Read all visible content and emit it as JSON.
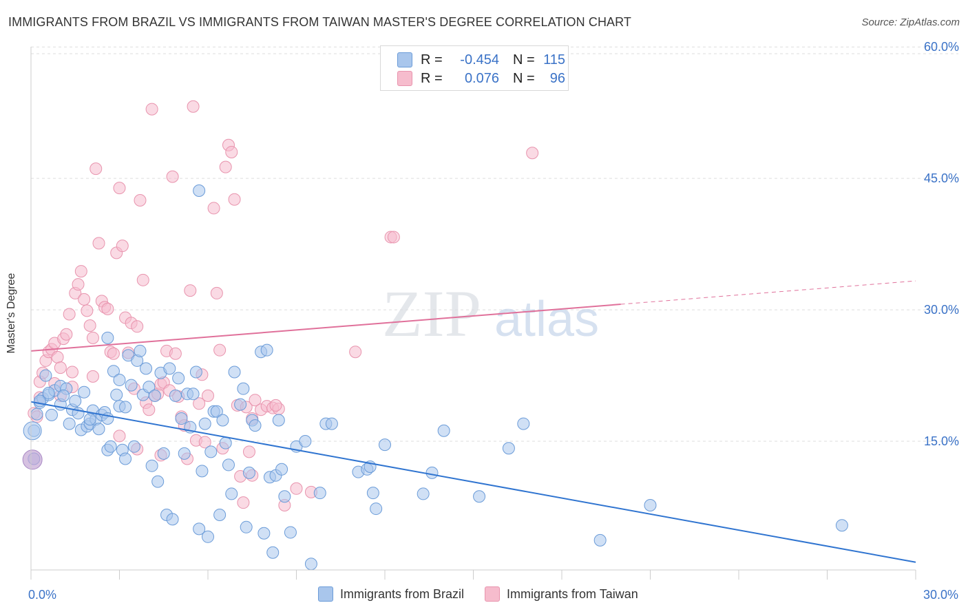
{
  "header": {
    "title": "IMMIGRANTS FROM BRAZIL VS IMMIGRANTS FROM TAIWAN MASTER'S DEGREE CORRELATION CHART",
    "source": "Source: ZipAtlas.com"
  },
  "watermark": {
    "zip": "ZIP",
    "atlas": "atlas"
  },
  "legend": {
    "brazil": {
      "r_label": "R =",
      "r_value": "-0.454",
      "n_label": "N =",
      "n_value": "115"
    },
    "taiwan": {
      "r_label": "R =",
      "r_value": "0.076",
      "n_label": "N =",
      "n_value": "96"
    }
  },
  "colors": {
    "brazil_fill": "#a9c6ec",
    "brazil_stroke": "#6a9bd8",
    "brazil_line": "#2f74d0",
    "taiwan_fill": "#f6bccd",
    "taiwan_stroke": "#e893ad",
    "taiwan_line": "#e0709a",
    "axis_text": "#3a72c7",
    "grid": "#dddddd"
  },
  "chart_data": {
    "type": "scatter",
    "title": "IMMIGRANTS FROM BRAZIL VS IMMIGRANTS FROM TAIWAN MASTER'S DEGREE CORRELATION CHART",
    "xlabel": "",
    "ylabel": "Master's Degree",
    "xlim": [
      0,
      30
    ],
    "ylim": [
      0,
      62
    ],
    "x_ticks": [
      0,
      3,
      6,
      9,
      12,
      15,
      18,
      21,
      24,
      27,
      30
    ],
    "x_tick_labels": [
      {
        "value": 0,
        "label": "0.0%"
      },
      {
        "value": 30,
        "label": "30.0%"
      }
    ],
    "y_ticks": [
      {
        "value": 15,
        "label": "15.0%"
      },
      {
        "value": 30,
        "label": "30.0%"
      },
      {
        "value": 45,
        "label": "45.0%"
      },
      {
        "value": 60,
        "label": "60.0%"
      }
    ],
    "grid": true,
    "legend_position": "top-center",
    "series": [
      {
        "name": "Immigrants from Brazil",
        "r": -0.454,
        "n": 115,
        "trend": {
          "x": [
            0,
            30
          ],
          "y": [
            19.5,
            1.2
          ],
          "dashed_from": null
        },
        "points": [
          [
            0.1,
            16.2
          ],
          [
            0.1,
            13.0
          ],
          [
            0.2,
            18.1
          ],
          [
            0.3,
            19.4
          ],
          [
            0.4,
            19.9
          ],
          [
            0.5,
            22.5
          ],
          [
            0.6,
            20.3
          ],
          [
            0.7,
            18.0
          ],
          [
            0.8,
            20.8
          ],
          [
            1.0,
            21.3
          ],
          [
            1.0,
            19.2
          ],
          [
            1.2,
            21.0
          ],
          [
            1.3,
            17.0
          ],
          [
            1.4,
            18.6
          ],
          [
            1.5,
            19.6
          ],
          [
            1.6,
            18.2
          ],
          [
            1.7,
            16.3
          ],
          [
            1.8,
            20.6
          ],
          [
            1.9,
            16.7
          ],
          [
            2.0,
            17.0
          ],
          [
            2.1,
            18.5
          ],
          [
            2.2,
            17.5
          ],
          [
            2.3,
            16.4
          ],
          [
            2.4,
            18.0
          ],
          [
            2.5,
            18.3
          ],
          [
            2.6,
            17.6
          ],
          [
            2.6,
            14.0
          ],
          [
            2.7,
            14.4
          ],
          [
            2.8,
            23.0
          ],
          [
            2.9,
            20.3
          ],
          [
            3.0,
            22.0
          ],
          [
            3.0,
            19.0
          ],
          [
            3.1,
            14.0
          ],
          [
            3.2,
            13.0
          ],
          [
            3.3,
            24.8
          ],
          [
            3.4,
            21.4
          ],
          [
            3.5,
            14.4
          ],
          [
            3.6,
            24.2
          ],
          [
            3.7,
            25.3
          ],
          [
            3.8,
            20.3
          ],
          [
            3.9,
            23.3
          ],
          [
            4.0,
            21.2
          ],
          [
            4.1,
            12.2
          ],
          [
            4.2,
            20.2
          ],
          [
            4.3,
            10.4
          ],
          [
            4.4,
            22.8
          ],
          [
            4.5,
            13.6
          ],
          [
            4.6,
            6.6
          ],
          [
            4.7,
            23.3
          ],
          [
            4.8,
            6.1
          ],
          [
            4.9,
            20.2
          ],
          [
            5.0,
            22.2
          ],
          [
            5.1,
            17.6
          ],
          [
            5.2,
            13.6
          ],
          [
            5.3,
            20.4
          ],
          [
            5.4,
            16.6
          ],
          [
            5.5,
            20.4
          ],
          [
            5.6,
            22.9
          ],
          [
            5.7,
            5.0
          ],
          [
            5.8,
            11.6
          ],
          [
            5.9,
            17.0
          ],
          [
            6.0,
            4.1
          ],
          [
            6.1,
            13.8
          ],
          [
            6.2,
            18.4
          ],
          [
            6.3,
            18.4
          ],
          [
            6.4,
            6.6
          ],
          [
            6.5,
            17.4
          ],
          [
            6.6,
            14.8
          ],
          [
            6.7,
            12.3
          ],
          [
            6.8,
            9.0
          ],
          [
            6.9,
            22.9
          ],
          [
            7.1,
            19.2
          ],
          [
            7.2,
            21.0
          ],
          [
            7.3,
            5.2
          ],
          [
            7.4,
            11.4
          ],
          [
            7.5,
            17.4
          ],
          [
            7.6,
            16.8
          ],
          [
            7.9,
            4.5
          ],
          [
            7.8,
            25.2
          ],
          [
            8.0,
            25.4
          ],
          [
            8.1,
            10.9
          ],
          [
            8.2,
            2.3
          ],
          [
            8.3,
            11.1
          ],
          [
            8.4,
            17.4
          ],
          [
            8.5,
            11.8
          ],
          [
            8.6,
            8.7
          ],
          [
            8.8,
            4.6
          ],
          [
            9.0,
            14.4
          ],
          [
            9.3,
            15.0
          ],
          [
            9.5,
            1.0
          ],
          [
            9.8,
            9.1
          ],
          [
            10.0,
            17.0
          ],
          [
            10.2,
            17.0
          ],
          [
            11.1,
            11.5
          ],
          [
            11.4,
            11.8
          ],
          [
            11.5,
            12.1
          ],
          [
            11.6,
            9.1
          ],
          [
            11.7,
            7.3
          ],
          [
            12.0,
            14.6
          ],
          [
            13.3,
            9.0
          ],
          [
            13.6,
            11.4
          ],
          [
            14.0,
            16.2
          ],
          [
            15.2,
            8.7
          ],
          [
            16.2,
            14.2
          ],
          [
            16.7,
            17.0
          ],
          [
            19.3,
            3.7
          ],
          [
            21.0,
            7.7
          ],
          [
            27.5,
            5.4
          ],
          [
            2.6,
            26.8
          ],
          [
            5.7,
            43.6
          ],
          [
            0.3,
            19.6
          ],
          [
            0.6,
            20.5
          ],
          [
            1.1,
            20.2
          ],
          [
            2.0,
            17.5
          ],
          [
            3.2,
            18.9
          ]
        ]
      },
      {
        "name": "Immigrants from Taiwan",
        "r": 0.076,
        "n": 96,
        "trend": {
          "x": [
            0,
            30
          ],
          "y": [
            25.3,
            33.3
          ],
          "dashed_from": 20
        },
        "points": [
          [
            0.1,
            18.2
          ],
          [
            0.2,
            17.8
          ],
          [
            0.3,
            21.8
          ],
          [
            0.4,
            22.8
          ],
          [
            0.5,
            24.2
          ],
          [
            0.6,
            25.2
          ],
          [
            0.7,
            25.5
          ],
          [
            0.8,
            26.2
          ],
          [
            0.9,
            24.6
          ],
          [
            1.0,
            23.4
          ],
          [
            1.1,
            26.7
          ],
          [
            1.2,
            27.2
          ],
          [
            1.3,
            29.5
          ],
          [
            1.4,
            22.9
          ],
          [
            1.5,
            31.9
          ],
          [
            1.6,
            32.9
          ],
          [
            1.7,
            34.4
          ],
          [
            1.8,
            31.2
          ],
          [
            1.9,
            29.9
          ],
          [
            2.0,
            28.2
          ],
          [
            2.1,
            26.8
          ],
          [
            2.2,
            46.1
          ],
          [
            2.3,
            37.6
          ],
          [
            2.4,
            31.0
          ],
          [
            2.5,
            30.3
          ],
          [
            2.6,
            30.1
          ],
          [
            2.7,
            25.2
          ],
          [
            2.8,
            25.0
          ],
          [
            2.9,
            36.5
          ],
          [
            3.0,
            43.9
          ],
          [
            3.1,
            37.3
          ],
          [
            3.2,
            29.1
          ],
          [
            3.3,
            25.1
          ],
          [
            3.4,
            28.5
          ],
          [
            3.5,
            21.0
          ],
          [
            3.6,
            28.1
          ],
          [
            3.7,
            42.5
          ],
          [
            3.8,
            33.4
          ],
          [
            3.9,
            19.4
          ],
          [
            4.0,
            18.6
          ],
          [
            4.1,
            52.9
          ],
          [
            4.2,
            20.2
          ],
          [
            4.3,
            20.4
          ],
          [
            4.4,
            21.5
          ],
          [
            4.5,
            21.7
          ],
          [
            4.6,
            25.3
          ],
          [
            4.7,
            20.8
          ],
          [
            4.8,
            45.2
          ],
          [
            4.9,
            25.0
          ],
          [
            5.0,
            20.1
          ],
          [
            5.1,
            17.8
          ],
          [
            5.2,
            16.8
          ],
          [
            5.3,
            13.0
          ],
          [
            5.4,
            32.2
          ],
          [
            5.5,
            53.2
          ],
          [
            5.6,
            15.1
          ],
          [
            5.7,
            19.3
          ],
          [
            5.8,
            22.6
          ],
          [
            6.0,
            20.2
          ],
          [
            6.2,
            41.6
          ],
          [
            6.3,
            31.9
          ],
          [
            6.4,
            25.4
          ],
          [
            6.5,
            14.2
          ],
          [
            6.6,
            46.3
          ],
          [
            6.7,
            48.8
          ],
          [
            6.8,
            48.0
          ],
          [
            6.9,
            42.6
          ],
          [
            7.0,
            19.1
          ],
          [
            7.1,
            11.0
          ],
          [
            7.2,
            8.0
          ],
          [
            7.3,
            18.9
          ],
          [
            7.4,
            13.8
          ],
          [
            7.5,
            11.1
          ],
          [
            7.6,
            19.7
          ],
          [
            7.8,
            18.6
          ],
          [
            8.0,
            19.0
          ],
          [
            8.2,
            18.8
          ],
          [
            8.4,
            18.7
          ],
          [
            9.0,
            9.6
          ],
          [
            9.5,
            9.2
          ],
          [
            11.0,
            25.2
          ],
          [
            12.2,
            38.3
          ],
          [
            12.3,
            38.3
          ],
          [
            17.0,
            47.9
          ],
          [
            1.4,
            21.2
          ],
          [
            0.8,
            21.6
          ],
          [
            2.1,
            22.4
          ],
          [
            3.0,
            15.6
          ],
          [
            3.6,
            14.1
          ],
          [
            4.4,
            13.4
          ],
          [
            5.9,
            14.9
          ],
          [
            7.5,
            17.6
          ],
          [
            8.3,
            19.1
          ],
          [
            8.6,
            7.7
          ],
          [
            1.0,
            20.2
          ],
          [
            0.3,
            20.0
          ]
        ]
      }
    ]
  },
  "bottom_legend": {
    "brazil_label": "Immigrants from Brazil",
    "taiwan_label": "Immigrants from Taiwan"
  }
}
